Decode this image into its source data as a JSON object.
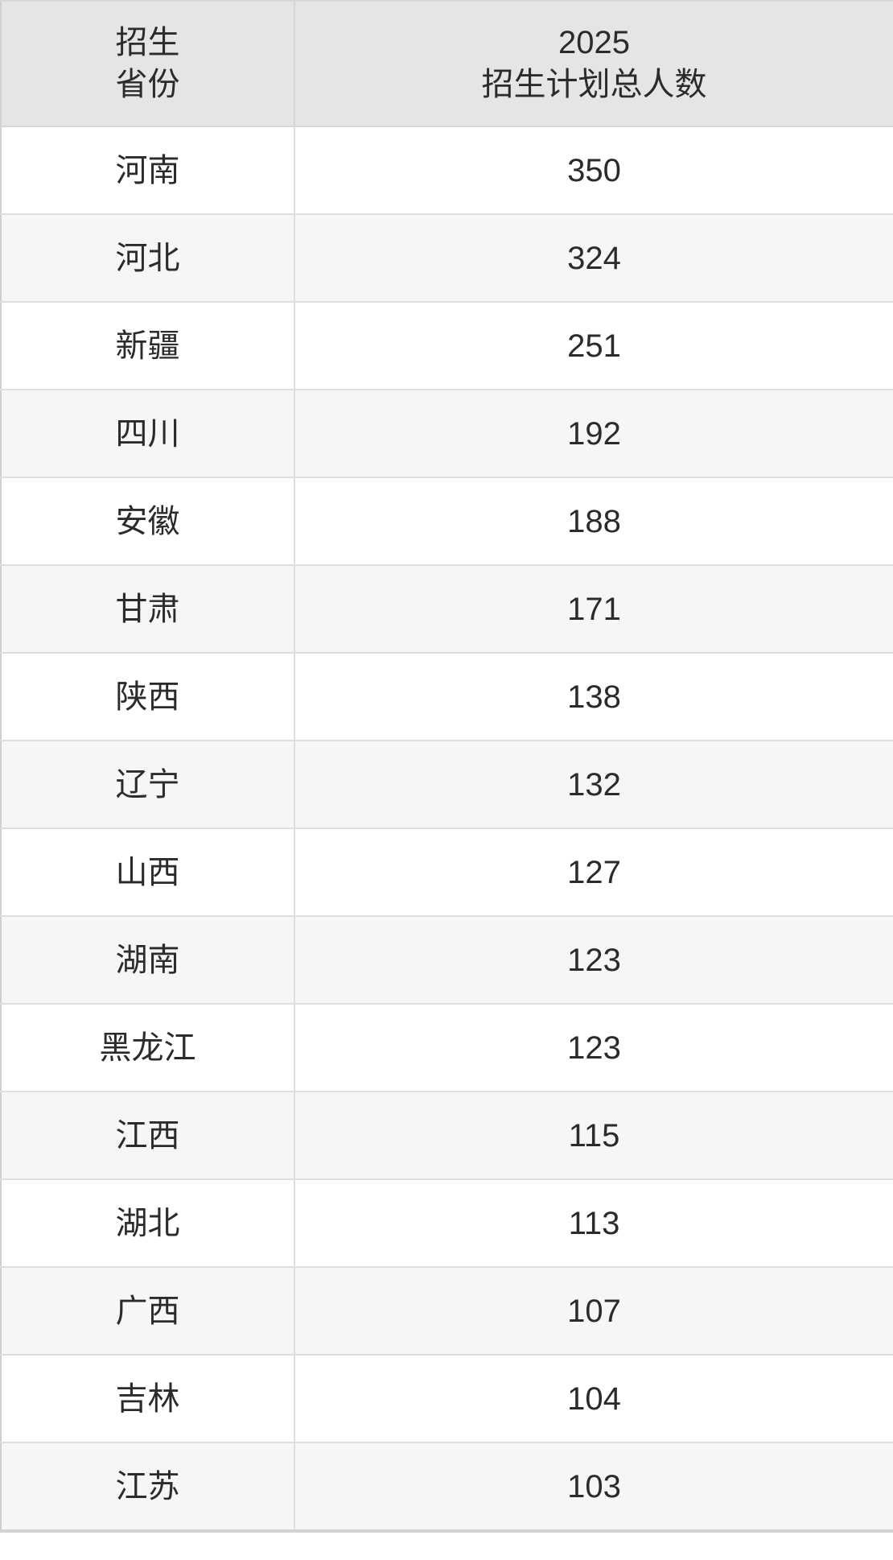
{
  "table": {
    "header": {
      "province_label": "招生\n省份",
      "plan_label": "2025\n招生计划总人数"
    },
    "rows": [
      {
        "province": "河南",
        "total": "350"
      },
      {
        "province": "河北",
        "total": "324"
      },
      {
        "province": "新疆",
        "total": "251"
      },
      {
        "province": "四川",
        "total": "192"
      },
      {
        "province": "安徽",
        "total": "188"
      },
      {
        "province": "甘肃",
        "total": "171"
      },
      {
        "province": "陕西",
        "total": "138"
      },
      {
        "province": "辽宁",
        "total": "132"
      },
      {
        "province": "山西",
        "total": "127"
      },
      {
        "province": "湖南",
        "total": "123"
      },
      {
        "province": "黑龙江",
        "total": "123"
      },
      {
        "province": "江西",
        "total": "115"
      },
      {
        "province": "湖北",
        "total": "113"
      },
      {
        "province": "广西",
        "total": "107"
      },
      {
        "province": "吉林",
        "total": "104"
      },
      {
        "province": "江苏",
        "total": "103"
      }
    ]
  },
  "colors": {
    "header_bg": "#e5e5e5",
    "row_bg": "#ffffff",
    "row_alt_bg": "#f5f6f5",
    "border": "#dedede",
    "outer_border": "#cfcfcf",
    "text": "#2b2b2b"
  },
  "chart_data": {
    "type": "table",
    "title": "2025 招生计划总人数 (by 招生省份)",
    "columns": [
      "招生省份",
      "2025招生计划总人数"
    ],
    "rows": [
      [
        "河南",
        350
      ],
      [
        "河北",
        324
      ],
      [
        "新疆",
        251
      ],
      [
        "四川",
        192
      ],
      [
        "安徽",
        188
      ],
      [
        "甘肃",
        171
      ],
      [
        "陕西",
        138
      ],
      [
        "辽宁",
        132
      ],
      [
        "山西",
        127
      ],
      [
        "湖南",
        123
      ],
      [
        "黑龙江",
        123
      ],
      [
        "江西",
        115
      ],
      [
        "湖北",
        113
      ],
      [
        "广西",
        107
      ],
      [
        "吉林",
        104
      ],
      [
        "江苏",
        103
      ]
    ]
  }
}
